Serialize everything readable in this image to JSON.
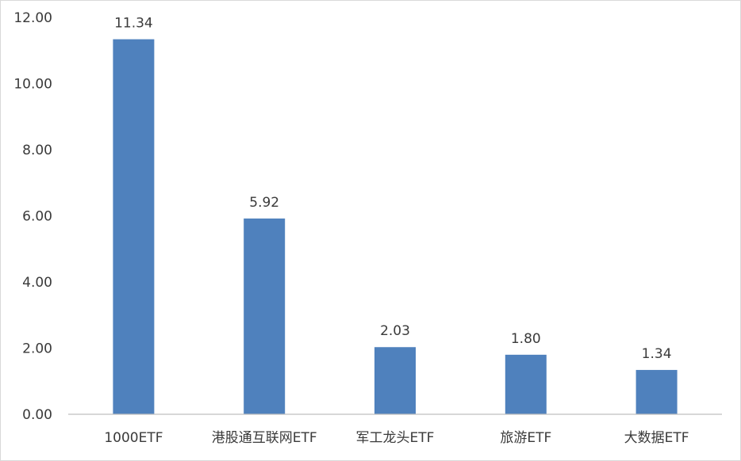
{
  "chart_data": {
    "type": "bar",
    "title": "",
    "xlabel": "",
    "ylabel": "",
    "categories": [
      "1000ETF",
      "港股通互联网ETF",
      "军工龙头ETF",
      "旅游ETF",
      "大数据ETF"
    ],
    "values": [
      11.34,
      5.92,
      2.03,
      1.8,
      1.34
    ],
    "data_labels": [
      "11.34",
      "5.92",
      "2.03",
      "1.80",
      "1.34"
    ],
    "ylim": [
      0,
      12
    ],
    "y_ticks": [
      0,
      2,
      4,
      6,
      8,
      10,
      12
    ],
    "y_tick_labels": [
      "0.00",
      "2.00",
      "4.00",
      "6.00",
      "8.00",
      "10.00",
      "12.00"
    ],
    "grid": false,
    "legend": "none",
    "bar_color": "#4f81bd",
    "axis_color": "#bfbfbf"
  }
}
